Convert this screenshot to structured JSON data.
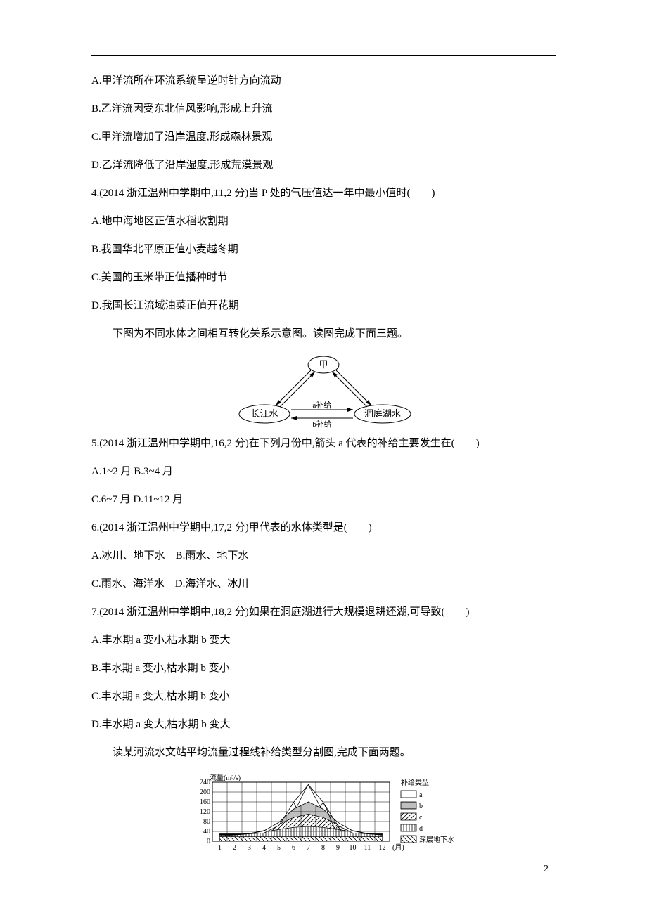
{
  "page_number": "2",
  "lines": {
    "l1": "A.甲洋流所在环流系统呈逆时针方向流动",
    "l2": "B.乙洋流因受东北信风影响,形成上升流",
    "l3": "C.甲洋流增加了沿岸温度,形成森林景观",
    "l4": "D.乙洋流降低了沿岸湿度,形成荒漠景观",
    "l5": "4.(2014 浙江温州中学期中,11,2 分)当 P 处的气压值达一年中最小值时(　　)",
    "l6": "A.地中海地区正值水稻收割期",
    "l7": "B.我国华北平原正值小麦越冬期",
    "l8": "C.美国的玉米带正值播种时节",
    "l9": "D.我国长江流域油菜正值开花期",
    "l10": "下图为不同水体之间相互转化关系示意图。读图完成下面三题。",
    "l11": "5.(2014 浙江温州中学期中,16,2 分)在下列月份中,箭头 a 代表的补给主要发生在(　　)",
    "l12": "A.1~2 月 B.3~4 月",
    "l13": "C.6~7 月 D.11~12 月",
    "l14": "6.(2014 浙江温州中学期中,17,2 分)甲代表的水体类型是(　　)",
    "l15": "A.冰川、地下水　B.雨水、地下水",
    "l16": "C.雨水、海洋水　D.海洋水、冰川",
    "l17": "7.(2014 浙江温州中学期中,18,2 分)如果在洞庭湖进行大规模退耕还湖,可导致(　　)",
    "l18": "A.丰水期 a 变小,枯水期 b 变大",
    "l19": "B.丰水期 a 变小,枯水期 b 变小",
    "l20": "C.丰水期 a 变大,枯水期 b 变小",
    "l21": "D.丰水期 a 变大,枯水期 b 变大",
    "l22": "读某河流水文站平均流量过程线补给类型分割图,完成下面两题。"
  },
  "diagram1": {
    "type": "network",
    "nodes": {
      "top": "甲",
      "left": "长江水",
      "right": "洞庭湖水"
    },
    "edge_labels": {
      "a": "a补给",
      "b": "b补给"
    },
    "stroke": "#000000",
    "fill": "#ffffff",
    "fontsize": 13,
    "label_fontsize": 11
  },
  "diagram2": {
    "type": "line",
    "y_title": "流量(m³/s)",
    "ylim": [
      0,
      240
    ],
    "ytick_step": 40,
    "yticks": [
      "0",
      "40",
      "80",
      "120",
      "160",
      "200",
      "240"
    ],
    "xticks": [
      "1",
      "2",
      "3",
      "4",
      "5",
      "6",
      "7",
      "8",
      "9",
      "10",
      "11",
      "12"
    ],
    "x_unit": "(月)",
    "legend_title": "补给类型",
    "legend": [
      "a",
      "b",
      "c",
      "d",
      "深层地下水"
    ],
    "stroke": "#000000",
    "grid_color": "#000000",
    "background_color": "#ffffff",
    "label_fontsize": 10,
    "peak_month_idx": 6,
    "peak_value": 230,
    "series_d_max": 40,
    "baseline": 18
  }
}
